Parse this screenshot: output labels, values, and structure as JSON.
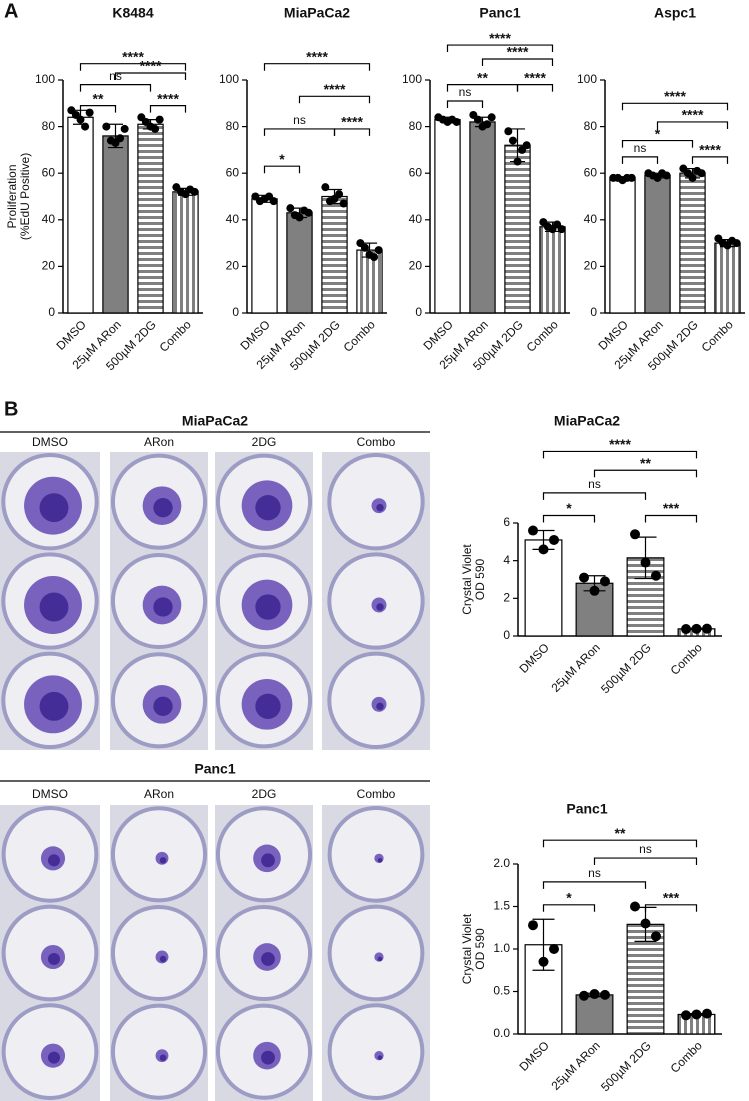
{
  "panel_labels": [
    "A",
    "B"
  ],
  "chart_data": [
    {
      "type": "bar",
      "title": "K8484",
      "y_label": [
        "Proliferation",
        "(%EdU Positive)"
      ],
      "categories": [
        "DMSO",
        "25µM ARon",
        "500µM 2DG",
        "Combo"
      ],
      "values": [
        84,
        76,
        81,
        52
      ],
      "errors": [
        3,
        5,
        2,
        1.5
      ],
      "points": [
        [
          87,
          85,
          83,
          80,
          86
        ],
        [
          80,
          74,
          73,
          75,
          79
        ],
        [
          84,
          82,
          80,
          79,
          83
        ],
        [
          54,
          52,
          51,
          53,
          52
        ]
      ],
      "fills": [
        "#ffffff",
        "#808080",
        "hstripe",
        "vstripe"
      ],
      "ylim": [
        0,
        100
      ],
      "yticks": [
        0,
        20,
        40,
        60,
        80,
        100
      ],
      "comparisons": [
        {
          "groups": [
            0,
            3
          ],
          "y": 107,
          "label": "****"
        },
        {
          "groups": [
            1,
            3
          ],
          "y": 103,
          "label": "****"
        },
        {
          "groups": [
            0,
            2
          ],
          "y": 98,
          "label": "ns"
        },
        {
          "groups": [
            0,
            1
          ],
          "y": 89,
          "label": "**"
        },
        {
          "groups": [
            2,
            3
          ],
          "y": 89,
          "label": "****"
        }
      ]
    },
    {
      "type": "bar",
      "title": "MiaPaCa2",
      "categories": [
        "DMSO",
        "25µM ARon",
        "500µM 2DG",
        "Combo"
      ],
      "values": [
        49,
        43,
        50,
        27
      ],
      "errors": [
        1.5,
        2,
        3,
        3
      ],
      "points": [
        [
          50,
          48,
          49,
          50,
          48
        ],
        [
          45,
          42,
          41,
          44,
          43
        ],
        [
          54,
          48,
          49,
          51,
          47
        ],
        [
          30,
          28,
          25,
          24,
          27
        ]
      ],
      "fills": [
        "#ffffff",
        "#808080",
        "hstripe",
        "vstripe"
      ],
      "ylim": [
        0,
        100
      ],
      "yticks": [
        0,
        20,
        40,
        60,
        80,
        100
      ],
      "comparisons": [
        {
          "groups": [
            0,
            3
          ],
          "y": 107,
          "label": "****"
        },
        {
          "groups": [
            1,
            3
          ],
          "y": 93,
          "label": "****"
        },
        {
          "groups": [
            0,
            2
          ],
          "y": 79,
          "label": "ns"
        },
        {
          "groups": [
            2,
            3
          ],
          "y": 79,
          "label": "****"
        },
        {
          "groups": [
            0,
            1
          ],
          "y": 63,
          "label": "*"
        }
      ]
    },
    {
      "type": "bar",
      "title": "Panc1",
      "categories": [
        "DMSO",
        "25µM ARon",
        "500µM 2DG",
        "Combo"
      ],
      "values": [
        83,
        82,
        72,
        37
      ],
      "errors": [
        1,
        2,
        7,
        2
      ],
      "points": [
        [
          84,
          83,
          82,
          83,
          82
        ],
        [
          85,
          83,
          80,
          81,
          84
        ],
        [
          78,
          74,
          65,
          70,
          72
        ],
        [
          39,
          37,
          36,
          38,
          36
        ]
      ],
      "fills": [
        "#ffffff",
        "#808080",
        "hstripe",
        "vstripe"
      ],
      "ylim": [
        0,
        100
      ],
      "yticks": [
        0,
        20,
        40,
        60,
        80,
        100
      ],
      "comparisons": [
        {
          "groups": [
            0,
            3
          ],
          "y": 115,
          "label": "****"
        },
        {
          "groups": [
            1,
            3
          ],
          "y": 109,
          "label": "****"
        },
        {
          "groups": [
            0,
            2
          ],
          "y": 98,
          "label": "**"
        },
        {
          "groups": [
            2,
            3
          ],
          "y": 98,
          "label": "****"
        },
        {
          "groups": [
            0,
            1
          ],
          "y": 91,
          "label": "ns"
        }
      ]
    },
    {
      "type": "bar",
      "title": "Aspc1",
      "categories": [
        "DMSO",
        "25µM ARon",
        "500µM 2DG",
        "Combo"
      ],
      "values": [
        58,
        59,
        60,
        30
      ],
      "errors": [
        0.5,
        1,
        2,
        1.5
      ],
      "points": [
        [
          58,
          58,
          57,
          58,
          58
        ],
        [
          60,
          59,
          58,
          60,
          59
        ],
        [
          62,
          60,
          58,
          61,
          60
        ],
        [
          32,
          30,
          29,
          31,
          30
        ]
      ],
      "fills": [
        "#ffffff",
        "#808080",
        "hstripe",
        "vstripe"
      ],
      "ylim": [
        0,
        100
      ],
      "yticks": [
        0,
        20,
        40,
        60,
        80,
        100
      ],
      "comparisons": [
        {
          "groups": [
            0,
            3
          ],
          "y": 90,
          "label": "****"
        },
        {
          "groups": [
            1,
            3
          ],
          "y": 82,
          "label": "****"
        },
        {
          "groups": [
            0,
            2
          ],
          "y": 74,
          "label": "*"
        },
        {
          "groups": [
            0,
            1
          ],
          "y": 67,
          "label": "ns"
        },
        {
          "groups": [
            2,
            3
          ],
          "y": 67,
          "label": "****"
        }
      ]
    },
    {
      "type": "bar",
      "title": "MiaPaCa2",
      "y_label": [
        "Crystal Violet",
        "OD 590"
      ],
      "categories": [
        "DMSO",
        "25µM ARon",
        "500µM 2DG",
        "Combo"
      ],
      "values": [
        5.1,
        2.8,
        4.15,
        0.38
      ],
      "errors": [
        0.5,
        0.4,
        1.1,
        0.03
      ],
      "points": [
        [
          5.6,
          4.6,
          5.1
        ],
        [
          3.1,
          2.4,
          2.9
        ],
        [
          5.4,
          3.9,
          3.2
        ],
        [
          0.37,
          0.38,
          0.39
        ]
      ],
      "fills": [
        "#ffffff",
        "#808080",
        "hstripe",
        "vstripe"
      ],
      "ylim": [
        0,
        6
      ],
      "yticks": [
        0,
        2,
        4,
        6
      ],
      "comparisons": [
        {
          "groups": [
            0,
            3
          ],
          "y": 9.8,
          "label": "****"
        },
        {
          "groups": [
            1,
            3
          ],
          "y": 8.8,
          "label": "**"
        },
        {
          "groups": [
            0,
            2
          ],
          "y": 7.6,
          "label": "ns"
        },
        {
          "groups": [
            0,
            1
          ],
          "y": 6.4,
          "label": "*"
        },
        {
          "groups": [
            2,
            3
          ],
          "y": 6.4,
          "label": "***"
        }
      ]
    },
    {
      "type": "bar",
      "title": "Panc1",
      "y_label": [
        "Crystal Violet",
        "OD 590"
      ],
      "categories": [
        "DMSO",
        "25µM ARon",
        "500µM 2DG",
        "Combo"
      ],
      "values": [
        1.05,
        0.46,
        1.29,
        0.23
      ],
      "errors": [
        0.3,
        0.02,
        0.2,
        0.01
      ],
      "points": [
        [
          1.28,
          0.85,
          1.0
        ],
        [
          0.45,
          0.47,
          0.46
        ],
        [
          1.5,
          1.3,
          1.15
        ],
        [
          0.22,
          0.23,
          0.24
        ]
      ],
      "fills": [
        "#ffffff",
        "#808080",
        "hstripe",
        "vstripe"
      ],
      "ylim": [
        0,
        2
      ],
      "yticks": [
        {
          "value": 0,
          "label": "0.0"
        },
        {
          "value": 0.5,
          "label": "0.5"
        },
        {
          "value": 1,
          "label": "1.0"
        },
        {
          "value": 1.5,
          "label": "1.5"
        },
        {
          "value": 2,
          "label": "2.0"
        }
      ],
      "comparisons": [
        {
          "groups": [
            0,
            3
          ],
          "y": 2.28,
          "label": "**"
        },
        {
          "groups": [
            1,
            3
          ],
          "y": 2.07,
          "label": "ns"
        },
        {
          "groups": [
            0,
            2
          ],
          "y": 1.79,
          "label": "ns"
        },
        {
          "groups": [
            0,
            1
          ],
          "y": 1.52,
          "label": "*"
        },
        {
          "groups": [
            2,
            3
          ],
          "y": 1.52,
          "label": "***"
        }
      ]
    }
  ],
  "photos": [
    {
      "title": "MiaPaCa2",
      "columns": [
        "DMSO",
        "ARon",
        "2DG",
        "Combo"
      ]
    },
    {
      "title": "Panc1",
      "columns": [
        "DMSO",
        "ARon",
        "2DG",
        "Combo"
      ]
    }
  ]
}
